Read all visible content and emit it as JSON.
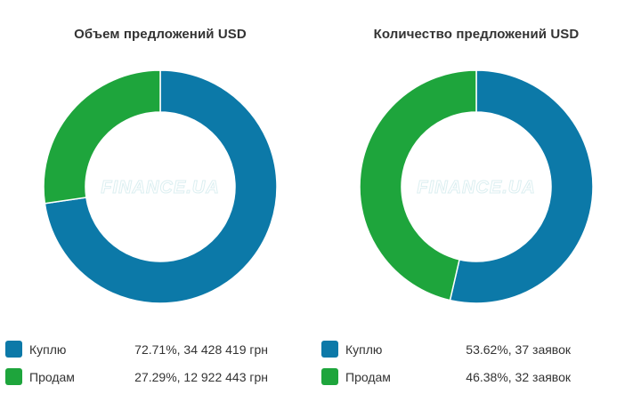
{
  "colors": {
    "buy": "#0c79a8",
    "sell": "#1ea53c"
  },
  "watermark": "FINANCE.UA",
  "chart_data": [
    {
      "type": "pie",
      "title": "Объем предложений USD",
      "slices": [
        {
          "name": "Куплю",
          "value": 72.71,
          "label": "72.71%, 34 428 419 грн",
          "color": "#0c79a8"
        },
        {
          "name": "Продам",
          "value": 27.29,
          "label": "27.29%, 12 922 443 грн",
          "color": "#1ea53c"
        }
      ],
      "legend": "bottom"
    },
    {
      "type": "pie",
      "title": "Количество предложений USD",
      "slices": [
        {
          "name": "Куплю",
          "value": 53.62,
          "label": "53.62%, 37 заявок",
          "color": "#0c79a8"
        },
        {
          "name": "Продам",
          "value": 46.38,
          "label": "46.38%, 32 заявок",
          "color": "#1ea53c"
        }
      ],
      "legend": "bottom"
    }
  ]
}
